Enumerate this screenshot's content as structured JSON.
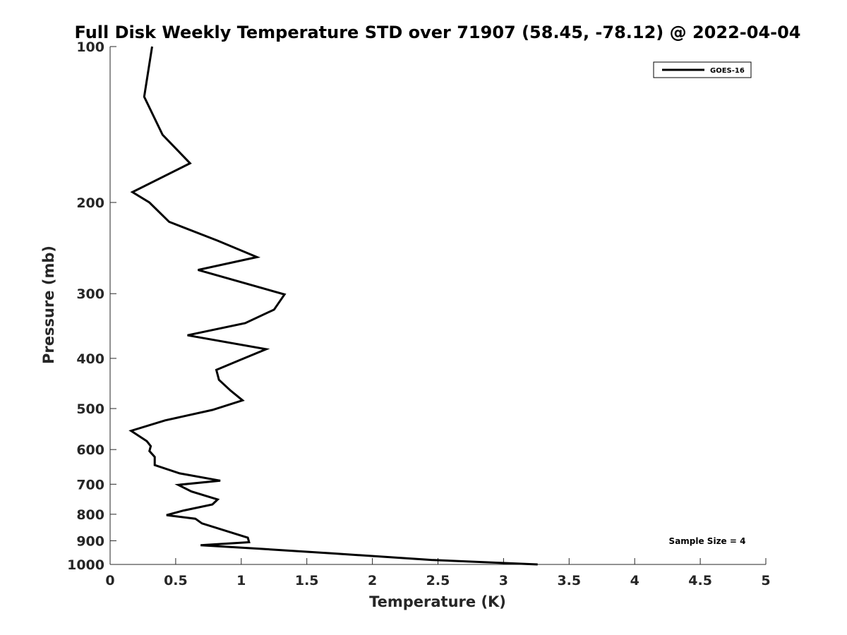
{
  "chart_data": {
    "type": "line",
    "title": "Full Disk Weekly Temperature STD over 71907 (58.45, -78.12) @ 2022-04-04",
    "xlabel": "Temperature (K)",
    "ylabel": "Pressure (mb)",
    "xlim": [
      0,
      5
    ],
    "ylim": [
      100,
      1000
    ],
    "y_scale": "log",
    "y_reversed": true,
    "x_ticks": [
      0,
      0.5,
      1,
      1.5,
      2,
      2.5,
      3,
      3.5,
      4,
      4.5,
      5
    ],
    "x_tick_labels": [
      "0",
      "0.5",
      "1",
      "1.5",
      "2",
      "2.5",
      "3",
      "3.5",
      "4",
      "4.5",
      "5"
    ],
    "y_ticks": [
      100,
      200,
      300,
      400,
      500,
      600,
      700,
      800,
      900,
      1000
    ],
    "y_tick_labels": [
      "100",
      "200",
      "300",
      "400",
      "500",
      "600",
      "700",
      "800",
      "900",
      "1000"
    ],
    "grid": false,
    "legend_position": "top-right",
    "annotation": "Sample Size = 4",
    "series": [
      {
        "name": "GOES-16",
        "color": "#000000",
        "points": [
          [
            0.32,
            100
          ],
          [
            0.26,
            125
          ],
          [
            0.4,
            148
          ],
          [
            0.61,
            168
          ],
          [
            0.17,
            191
          ],
          [
            0.3,
            200
          ],
          [
            0.45,
            218
          ],
          [
            0.82,
            237
          ],
          [
            1.12,
            255
          ],
          [
            0.67,
            270
          ],
          [
            1.33,
            301
          ],
          [
            1.25,
            322
          ],
          [
            1.03,
            342
          ],
          [
            0.59,
            361
          ],
          [
            1.19,
            384
          ],
          [
            1.0,
            402
          ],
          [
            0.81,
            421
          ],
          [
            0.83,
            440
          ],
          [
            0.92,
            462
          ],
          [
            1.01,
            482
          ],
          [
            0.78,
            503
          ],
          [
            0.42,
            527
          ],
          [
            0.16,
            552
          ],
          [
            0.28,
            578
          ],
          [
            0.31,
            591
          ],
          [
            0.3,
            604
          ],
          [
            0.34,
            620
          ],
          [
            0.34,
            643
          ],
          [
            0.53,
            667
          ],
          [
            0.84,
            689
          ],
          [
            0.52,
            702
          ],
          [
            0.62,
            723
          ],
          [
            0.82,
            749
          ],
          [
            0.78,
            766
          ],
          [
            0.56,
            787
          ],
          [
            0.43,
            803
          ],
          [
            0.65,
            816
          ],
          [
            0.7,
            833
          ],
          [
            1.05,
            888
          ],
          [
            1.06,
            906
          ],
          [
            0.69,
            918
          ],
          [
            1.13,
            932
          ],
          [
            1.69,
            952
          ],
          [
            2.45,
            980
          ],
          [
            3.26,
            1000
          ]
        ]
      }
    ]
  }
}
